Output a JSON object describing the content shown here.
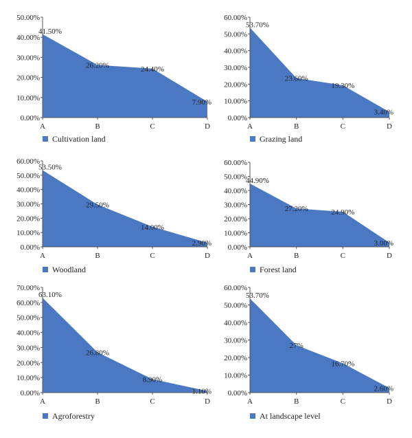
{
  "chart_data": [
    {
      "type": "area",
      "categories": [
        "A",
        "B",
        "C",
        "D"
      ],
      "values": [
        41.5,
        26.2,
        24.4,
        7.9
      ],
      "data_labels": [
        "41.50%",
        "26.20%",
        "24.40%",
        "7.90%"
      ],
      "y_ticks": [
        "0.00%",
        "10.00%",
        "20.00%",
        "30.00%",
        "40.00%",
        "50.00%"
      ],
      "ylim": [
        0,
        50
      ],
      "legend": "Cultivation land",
      "legend_position": "bottom",
      "grid": false,
      "color": "#4a78c2"
    },
    {
      "type": "area",
      "categories": [
        "A",
        "B",
        "C",
        "D"
      ],
      "values": [
        53.7,
        23.6,
        19.3,
        3.4
      ],
      "data_labels": [
        "53.70%",
        "23.60%",
        "19.30%",
        "3.40%"
      ],
      "y_ticks": [
        "0.00%",
        "10.00%",
        "20.00%",
        "30.00%",
        "40.00%",
        "50.00%",
        "60.00%"
      ],
      "ylim": [
        0,
        60
      ],
      "legend": "Grazing land",
      "legend_position": "bottom",
      "grid": false,
      "color": "#4a78c2"
    },
    {
      "type": "area",
      "categories": [
        "A",
        "B",
        "C",
        "D"
      ],
      "values": [
        53.5,
        29.5,
        14.0,
        2.9
      ],
      "data_labels": [
        "53.50%",
        "29.50%",
        "14.00%",
        "2.90%"
      ],
      "y_ticks": [
        "0.00%",
        "10.00%",
        "20.00%",
        "30.00%",
        "40.00%",
        "50.00%",
        "60.00%"
      ],
      "ylim": [
        0,
        60
      ],
      "legend": "Woodland",
      "legend_position": "bottom",
      "grid": false,
      "color": "#4a78c2"
    },
    {
      "type": "area",
      "categories": [
        "A",
        "B",
        "C",
        "D"
      ],
      "values": [
        44.9,
        27.2,
        24.9,
        3.0
      ],
      "data_labels": [
        "44.90%",
        "27.20%",
        "24.90%",
        "3.00%"
      ],
      "y_ticks": [
        "0.00%",
        "10.00%",
        "20.00%",
        "30.00%",
        "40.00%",
        "50.00%",
        "60.00%"
      ],
      "ylim": [
        0,
        60
      ],
      "legend": "Forest land",
      "legend_position": "bottom",
      "grid": false,
      "color": "#4a78c2"
    },
    {
      "type": "area",
      "categories": [
        "A",
        "B",
        "C",
        "D"
      ],
      "values": [
        63.1,
        26.8,
        8.9,
        1.1
      ],
      "data_labels": [
        "63.10%",
        "26.80%",
        "8.90%",
        "1.10%"
      ],
      "y_ticks": [
        "0.00%",
        "10.00%",
        "20.00%",
        "30.00%",
        "40.00%",
        "50.00%",
        "60.00%",
        "70.00%"
      ],
      "ylim": [
        0,
        70
      ],
      "legend": "Agroforestry",
      "legend_position": "bottom",
      "grid": false,
      "color": "#4a78c2"
    },
    {
      "type": "area",
      "categories": [
        "A",
        "B",
        "C",
        "D"
      ],
      "values": [
        53.7,
        27,
        16.7,
        2.6
      ],
      "data_labels": [
        "53.70%",
        "27%",
        "16.70%",
        "2.60%"
      ],
      "y_ticks": [
        "0.00%",
        "10.00%",
        "20.00%",
        "30.00%",
        "40.00%",
        "50.00%",
        "60.00%"
      ],
      "ylim": [
        0,
        60
      ],
      "legend": "At landscape level",
      "legend_position": "bottom",
      "grid": false,
      "color": "#4a78c2"
    }
  ]
}
